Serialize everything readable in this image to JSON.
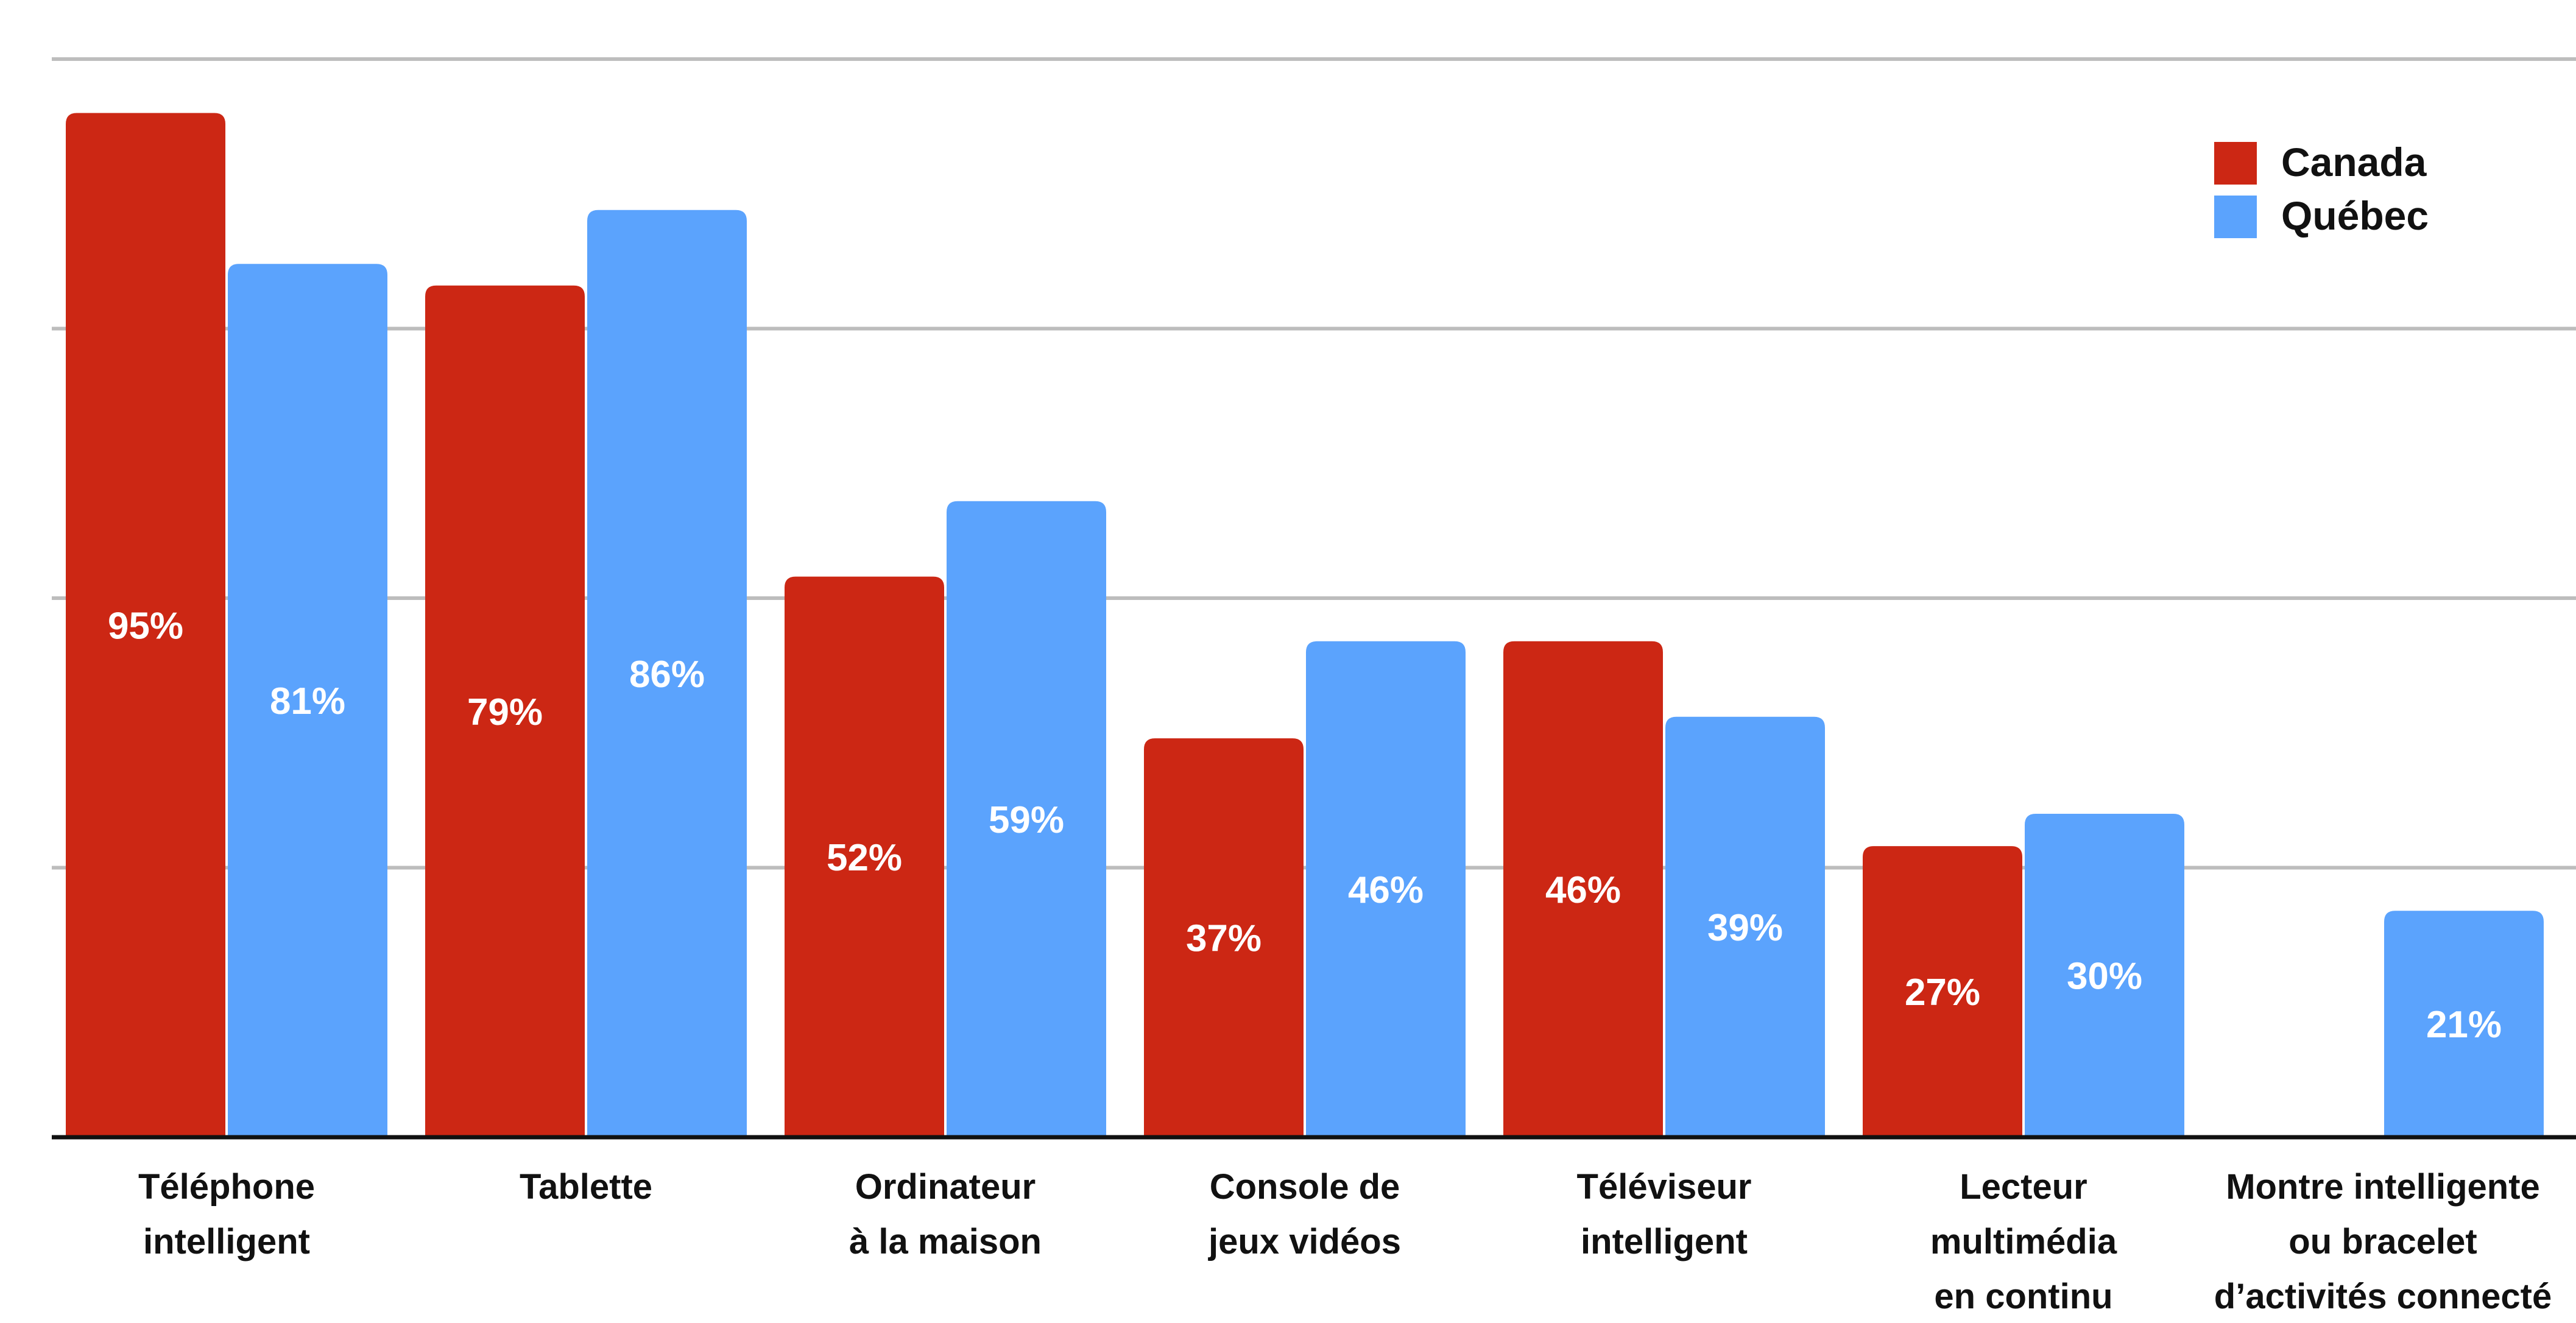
{
  "chart_data": {
    "type": "bar",
    "title": "",
    "xlabel": "",
    "ylabel": "",
    "ylim": [
      0,
      100
    ],
    "grid": true,
    "legend_position": "top-right",
    "categories": [
      [
        "Téléphone",
        "intelligent"
      ],
      [
        "Tablette"
      ],
      [
        "Ordinateur",
        "à la maison"
      ],
      [
        "Console de",
        "jeux vidéos"
      ],
      [
        "Téléviseur",
        "intelligent"
      ],
      [
        "Lecteur",
        "multimédia",
        "en continu"
      ],
      [
        "Montre intelligente",
        "ou bracelet",
        "d’activités connecté"
      ]
    ],
    "series": [
      {
        "name": "Canada",
        "color": "#CC2714",
        "values": [
          95,
          79,
          52,
          37,
          46,
          27,
          null
        ],
        "labels": [
          "95%",
          "79%",
          "52%",
          "37%",
          "46%",
          "27%",
          ""
        ]
      },
      {
        "name": "Québec",
        "color": "#5BA3FD",
        "values": [
          81,
          86,
          59,
          46,
          39,
          30,
          21
        ],
        "labels": [
          "81%",
          "86%",
          "59%",
          "46%",
          "39%",
          "30%",
          "21%"
        ]
      }
    ]
  }
}
